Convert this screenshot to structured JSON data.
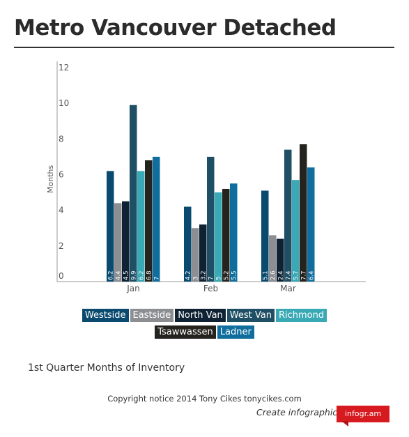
{
  "page": {
    "title": "Metro Vancouver Detached",
    "subtitle": "1st Quarter Months of Inventory",
    "footer": "Copyright notice 2014 Tony Cikes tonycikes.com",
    "create_label": "Create infographics",
    "badge_label": "infogr.am"
  },
  "chart_data": {
    "type": "bar",
    "title": "Metro Vancouver Detached",
    "ylabel": "Months",
    "xlabel": "",
    "ylim": [
      0,
      12
    ],
    "yticks": [
      0,
      2,
      4,
      6,
      8,
      10,
      12
    ],
    "categories": [
      "Jan",
      "Feb",
      "Mar"
    ],
    "legend_position": "bottom",
    "grid": false,
    "series": [
      {
        "name": "Westside",
        "color": "#0b4a6f",
        "values": [
          6.2,
          4.2,
          5.1
        ]
      },
      {
        "name": "Eastside",
        "color": "#8c8e91",
        "values": [
          4.4,
          3,
          2.6
        ]
      },
      {
        "name": "North Van",
        "color": "#0f2233",
        "values": [
          4.5,
          3.2,
          2.4
        ]
      },
      {
        "name": "West Van",
        "color": "#1f4f64",
        "values": [
          9.9,
          7,
          7.4
        ]
      },
      {
        "name": "Richmond",
        "color": "#39a9b5",
        "values": [
          6.2,
          5,
          5.7
        ]
      },
      {
        "name": "Tsawwassen",
        "color": "#24231e",
        "values": [
          6.8,
          5.2,
          7.7
        ]
      },
      {
        "name": "Ladner",
        "color": "#0f6e9e",
        "values": [
          7,
          5.5,
          6.4
        ]
      }
    ]
  }
}
